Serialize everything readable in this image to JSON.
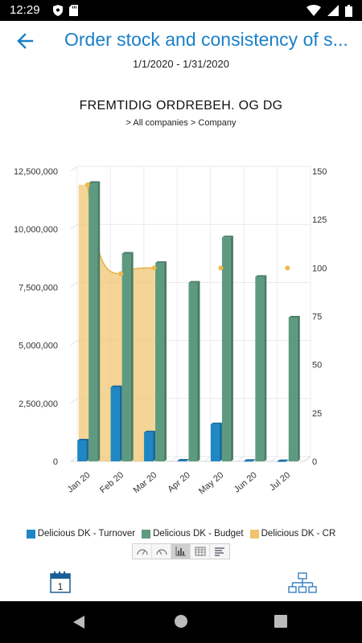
{
  "status_bar": {
    "time": "12:29",
    "icons_left": [
      "shield-icon",
      "sd-card-icon"
    ],
    "icons_right": [
      "wifi-icon",
      "signal-icon",
      "battery-icon"
    ]
  },
  "header": {
    "title": "Order stock and consistency of s...",
    "date_range": "1/1/2020 - 1/31/2020"
  },
  "colors": {
    "accent": "#1a7fc8",
    "turnover": "#1f87c4",
    "budget": "#5e9a80",
    "cr": "#f0c36a"
  },
  "chart_data": {
    "type": "bar",
    "title": "FREMTIDIG ORDREBEH. OG DG",
    "subtitle": "> All companies > Company",
    "categories": [
      "Jan 20",
      "Feb 20",
      "Mar 20",
      "Apr 20",
      "May 20",
      "Jun 20",
      "Jul 20"
    ],
    "series": [
      {
        "name": "Delicious DK - Turnover",
        "type": "bar",
        "axis": "left",
        "values": [
          900000,
          3200000,
          1250000,
          30000,
          1600000,
          20000,
          10000
        ]
      },
      {
        "name": "Delicious DK - Budget",
        "type": "bar",
        "axis": "left",
        "values": [
          12000000,
          8950000,
          8550000,
          7700000,
          9650000,
          7950000,
          6200000
        ]
      },
      {
        "name": "Delicious DK - CR",
        "type": "area-line",
        "axis": "right",
        "values": [
          143,
          97,
          100,
          null,
          100,
          null,
          100
        ]
      }
    ],
    "y_left": {
      "min": 0,
      "max": 12500000,
      "ticks": [
        "0",
        "2,500,000",
        "5,000,000",
        "7,500,000",
        "10,000,000",
        "12,500,000"
      ]
    },
    "y_right": {
      "min": 0,
      "max": 150,
      "ticks": [
        "0",
        "25",
        "50",
        "75",
        "100",
        "125",
        "150"
      ]
    },
    "grid": true,
    "legend": "bottom"
  },
  "toolbar": {
    "buttons": [
      "gauge-icon",
      "gauge-alt-icon",
      "bar-chart-icon",
      "table-icon",
      "report-icon"
    ],
    "active_index": 2
  },
  "bottom": {
    "calendar_day": "1"
  }
}
